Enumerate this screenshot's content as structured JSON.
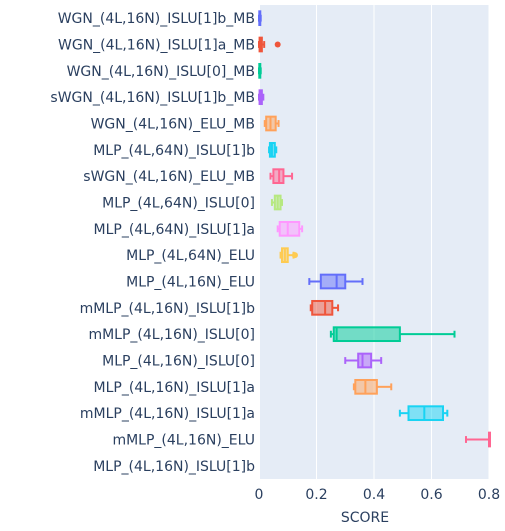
{
  "chart_data": {
    "type": "box",
    "orientation": "horizontal",
    "xlabel": "SCORE",
    "xlim": [
      0,
      0.8
    ],
    "xticks": [
      "0",
      "0.2",
      "0.4",
      "0.6",
      "0.8"
    ],
    "grid": true,
    "background": "#e5ecf6",
    "categories": [
      "WGN_(4L,16N)_ISLU[1]b_MB",
      "WGN_(4L,16N)_ISLU[1]a_MB",
      "WGN_(4L,16N)_ISLU[0]_MB",
      "sWGN_(4L,16N)_ISLU[1]b_MB",
      "WGN_(4L,16N)_ELU_MB",
      "MLP_(4L,64N)_ISLU[1]b",
      "sWGN_(4L,16N)_ELU_MB",
      "MLP_(4L,64N)_ISLU[0]",
      "MLP_(4L,64N)_ISLU[1]a",
      "MLP_(4L,64N)_ELU",
      "MLP_(4L,16N)_ELU",
      "mMLP_(4L,16N)_ISLU[1]b",
      "mMLP_(4L,16N)_ISLU[0]",
      "MLP_(4L,16N)_ISLU[0]",
      "MLP_(4L,16N)_ISLU[1]a",
      "mMLP_(4L,16N)_ISLU[1]a",
      "mMLP_(4L,16N)_ELU",
      "MLP_(4L,16N)_ISLU[1]b"
    ],
    "series": [
      {
        "min": 0.0,
        "q1": 0.001,
        "median": 0.002,
        "q3": 0.004,
        "max": 0.006,
        "outliers": [],
        "color": "#636efa"
      },
      {
        "min": 0.0,
        "q1": 0.002,
        "median": 0.005,
        "q3": 0.01,
        "max": 0.018,
        "outliers": [
          0.065
        ],
        "color": "#ef553b"
      },
      {
        "min": 0.0,
        "q1": 0.001,
        "median": 0.002,
        "q3": 0.004,
        "max": 0.006,
        "outliers": [],
        "color": "#00cc96"
      },
      {
        "min": 0.0,
        "q1": 0.002,
        "median": 0.005,
        "q3": 0.01,
        "max": 0.015,
        "outliers": [],
        "color": "#ab63fa"
      },
      {
        "min": 0.02,
        "q1": 0.025,
        "median": 0.04,
        "q3": 0.058,
        "max": 0.068,
        "outliers": [],
        "color": "#ffa15a"
      },
      {
        "min": 0.035,
        "q1": 0.038,
        "median": 0.045,
        "q3": 0.055,
        "max": 0.06,
        "outliers": [],
        "color": "#19d3f3"
      },
      {
        "min": 0.04,
        "q1": 0.05,
        "median": 0.07,
        "q3": 0.085,
        "max": 0.115,
        "outliers": [],
        "color": "#ff6692"
      },
      {
        "min": 0.045,
        "q1": 0.055,
        "median": 0.065,
        "q3": 0.075,
        "max": 0.08,
        "outliers": [],
        "color": "#b6e880"
      },
      {
        "min": 0.065,
        "q1": 0.072,
        "median": 0.1,
        "q3": 0.14,
        "max": 0.15,
        "outliers": [],
        "color": "#ff97ff"
      },
      {
        "min": 0.075,
        "q1": 0.08,
        "median": 0.09,
        "q3": 0.1,
        "max": 0.12,
        "outliers": [
          0.125
        ],
        "color": "#fecb52"
      },
      {
        "min": 0.175,
        "q1": 0.215,
        "median": 0.27,
        "q3": 0.3,
        "max": 0.36,
        "outliers": [],
        "color": "#636efa"
      },
      {
        "min": 0.18,
        "q1": 0.185,
        "median": 0.23,
        "q3": 0.255,
        "max": 0.275,
        "outliers": [],
        "color": "#ef553b"
      },
      {
        "min": 0.25,
        "q1": 0.26,
        "median": 0.27,
        "q3": 0.49,
        "max": 0.68,
        "outliers": [],
        "color": "#00cc96"
      },
      {
        "min": 0.3,
        "q1": 0.345,
        "median": 0.36,
        "q3": 0.39,
        "max": 0.425,
        "outliers": [],
        "color": "#ab63fa"
      },
      {
        "min": 0.33,
        "q1": 0.335,
        "median": 0.37,
        "q3": 0.41,
        "max": 0.46,
        "outliers": [],
        "color": "#ffa15a"
      },
      {
        "min": 0.49,
        "q1": 0.52,
        "median": 0.575,
        "q3": 0.64,
        "max": 0.655,
        "outliers": [],
        "color": "#19d3f3"
      },
      {
        "min": 0.72,
        "q1": 0.8,
        "median": 0.8,
        "q3": 0.8,
        "max": 0.8,
        "outliers": [],
        "color": "#ff6692"
      },
      {
        "min": null,
        "q1": null,
        "median": null,
        "q3": null,
        "max": null,
        "outliers": [],
        "color": "#b6e880"
      }
    ]
  }
}
